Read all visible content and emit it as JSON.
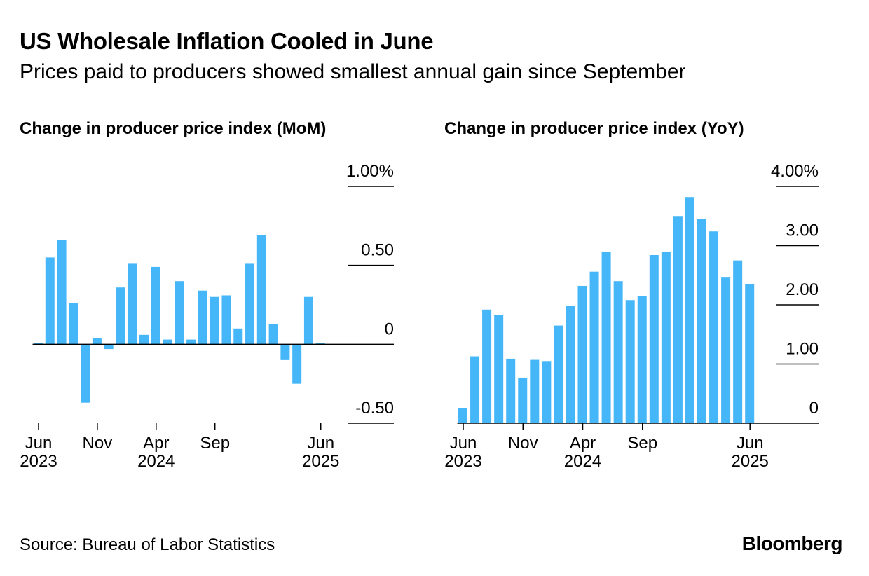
{
  "title": "US Wholesale Inflation Cooled in June",
  "subtitle": "Prices paid to producers showed smallest annual gain since September",
  "source": "Source: Bureau of Labor Statistics",
  "brand": "Bloomberg",
  "colors": {
    "bar": "#45b6f8",
    "axis": "#000000"
  },
  "chart_data": [
    {
      "type": "bar",
      "title": "Change in producer price index (MoM)",
      "x": [
        "2023-06",
        "2023-07",
        "2023-08",
        "2023-09",
        "2023-10",
        "2023-11",
        "2023-12",
        "2024-01",
        "2024-02",
        "2024-03",
        "2024-04",
        "2024-05",
        "2024-06",
        "2024-07",
        "2024-08",
        "2024-09",
        "2024-10",
        "2024-11",
        "2024-12",
        "2025-01",
        "2025-02",
        "2025-03",
        "2025-04",
        "2025-05",
        "2025-06"
      ],
      "values": [
        0.01,
        0.55,
        0.66,
        0.26,
        -0.37,
        0.04,
        -0.03,
        0.36,
        0.51,
        0.06,
        0.49,
        0.03,
        0.4,
        0.03,
        0.34,
        0.3,
        0.31,
        0.1,
        0.51,
        0.69,
        0.13,
        -0.1,
        -0.25,
        0.3,
        0.01
      ],
      "ylim": [
        -0.5,
        1.0
      ],
      "yticks": [
        -0.5,
        0,
        0.5,
        1.0
      ],
      "ytick_labels": [
        "-0.50",
        "0",
        "0.50",
        "1.00%"
      ],
      "xticks": [
        {
          "month": "Jun",
          "year": "2023"
        },
        {
          "month": "Nov",
          "year": ""
        },
        {
          "month": "Apr",
          "year": "2024"
        },
        {
          "month": "Sep",
          "year": ""
        },
        {
          "month": "Jun",
          "year": "2025"
        }
      ]
    },
    {
      "type": "bar",
      "title": "Change in producer price index (YoY)",
      "x": [
        "2023-06",
        "2023-07",
        "2023-08",
        "2023-09",
        "2023-10",
        "2023-11",
        "2023-12",
        "2024-01",
        "2024-02",
        "2024-03",
        "2024-04",
        "2024-05",
        "2024-06",
        "2024-07",
        "2024-08",
        "2024-09",
        "2024-10",
        "2024-11",
        "2024-12",
        "2025-01",
        "2025-02",
        "2025-03",
        "2025-04",
        "2025-05",
        "2025-06"
      ],
      "values": [
        0.26,
        1.13,
        1.92,
        1.83,
        1.09,
        0.77,
        1.07,
        1.05,
        1.65,
        1.98,
        2.32,
        2.56,
        2.9,
        2.4,
        2.08,
        2.15,
        2.84,
        2.9,
        3.5,
        3.82,
        3.45,
        3.24,
        2.46,
        2.75,
        2.35
      ],
      "ylim": [
        0,
        4.0
      ],
      "yticks": [
        0,
        1.0,
        2.0,
        3.0,
        4.0
      ],
      "ytick_labels": [
        "0",
        "1.00",
        "2.00",
        "3.00",
        "4.00%"
      ],
      "xticks": [
        {
          "month": "Jun",
          "year": "2023"
        },
        {
          "month": "Nov",
          "year": ""
        },
        {
          "month": "Apr",
          "year": "2024"
        },
        {
          "month": "Sep",
          "year": ""
        },
        {
          "month": "Jun",
          "year": "2025"
        }
      ]
    }
  ]
}
